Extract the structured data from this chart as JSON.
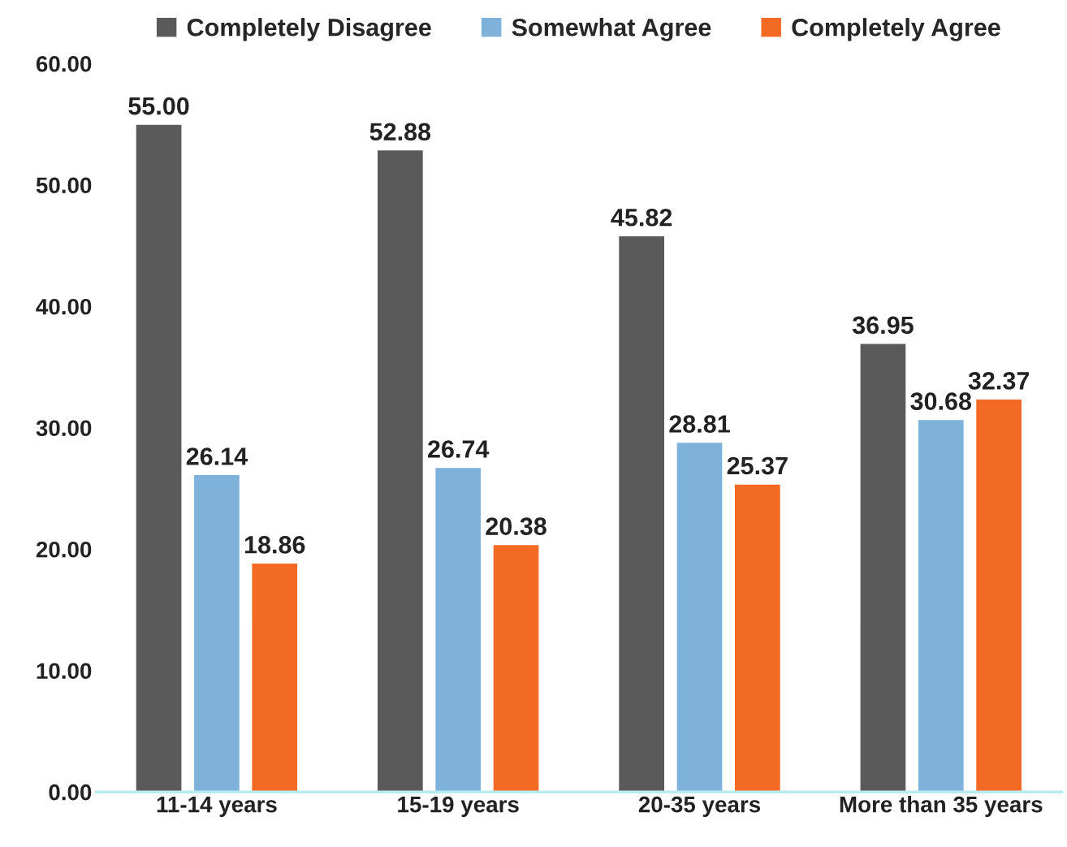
{
  "chart_data": {
    "type": "bar",
    "categories": [
      "11-14 years",
      "15-19 years",
      "20-35 years",
      "More than 35 years"
    ],
    "series": [
      {
        "name": "Completely Disagree",
        "color": "#5a5a5a",
        "values": [
          55.0,
          52.88,
          45.82,
          36.95
        ],
        "value_labels": [
          "55.00",
          "52.88",
          "45.82",
          "36.95"
        ]
      },
      {
        "name": "Somewhat Agree",
        "color": "#7fb2da",
        "values": [
          26.14,
          26.74,
          28.81,
          30.68
        ],
        "value_labels": [
          "26.14",
          "26.74",
          "28.81",
          "30.68"
        ]
      },
      {
        "name": "Completely Agree",
        "color": "#f26a24",
        "values": [
          18.86,
          20.38,
          25.37,
          32.37
        ],
        "value_labels": [
          "18.86",
          "20.38",
          "25.37",
          "32.37"
        ]
      }
    ],
    "ylim": [
      0,
      60
    ],
    "yticks": [
      {
        "value": 0,
        "label": "0.00"
      },
      {
        "value": 10,
        "label": "10.00"
      },
      {
        "value": 20,
        "label": "20.00"
      },
      {
        "value": 30,
        "label": "30.00"
      },
      {
        "value": 40,
        "label": "40.00"
      },
      {
        "value": 50,
        "label": "50.00"
      },
      {
        "value": 60,
        "label": "60.00"
      }
    ],
    "grid": false,
    "legend": "top",
    "marker": "square"
  }
}
